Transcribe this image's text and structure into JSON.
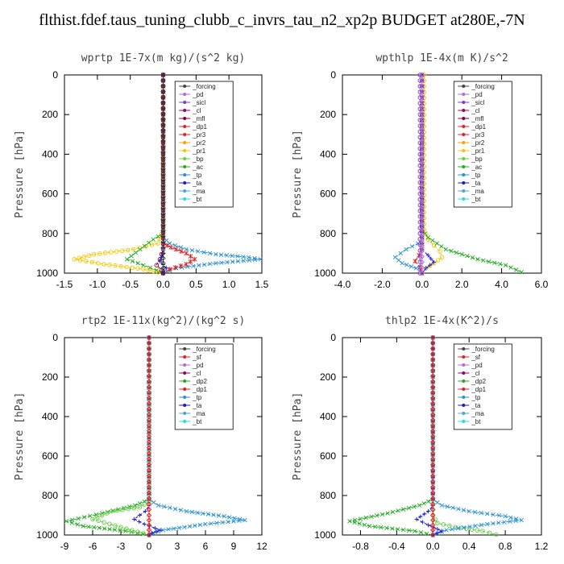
{
  "figure_title": "flthist.fdef.taus_tuning_clubb_c_invrs_tau_n2_xp2p  BUDGET at280E,-7N",
  "chart_data": [
    {
      "type": "line",
      "title": "wprtp  1E-7x(m kg)/(s^2 kg)",
      "ylabel": "Pressure [hPa]",
      "xlim": [
        -1.5,
        1.5
      ],
      "ylim": [
        1000,
        0
      ],
      "xticks": [
        "-1.5",
        "-1.0",
        "-0.5",
        "0.0",
        "0.5",
        "1.0",
        "1.5"
      ],
      "yticks": [
        "0",
        "200",
        "400",
        "600",
        "800",
        "1000"
      ],
      "legend": [
        "_forcing",
        "_pd",
        "_sicl",
        "_cl",
        "_mfl",
        "_dp1",
        "_pr3",
        "_pr2",
        "_pr1",
        "_bp",
        "_ac",
        "_tp",
        "_ta",
        "_ma",
        "_bt"
      ],
      "series": [
        {
          "name": "_pr1",
          "color": "#f5c400",
          "marker": "circle",
          "x": [
            0,
            0,
            -0.08,
            -0.45,
            -1.05,
            -1.35,
            -0.9,
            -0.3,
            0
          ],
          "y": [
            0,
            780,
            850,
            880,
            905,
            930,
            955,
            980,
            1000
          ]
        },
        {
          "name": "_ac",
          "color": "#22aa22",
          "marker": "x",
          "x": [
            0,
            0,
            -0.15,
            -0.35,
            -0.55,
            -0.3,
            -0.1,
            0
          ],
          "y": [
            0,
            800,
            830,
            880,
            930,
            960,
            985,
            1000
          ]
        },
        {
          "name": "_tp",
          "color": "#2a8fd4",
          "marker": "x",
          "x": [
            0,
            0,
            0.1,
            0.35,
            0.8,
            1.3,
            1.48,
            0.8,
            0.2,
            0
          ],
          "y": [
            0,
            820,
            850,
            880,
            905,
            920,
            930,
            950,
            975,
            1000
          ]
        },
        {
          "name": "_pr3",
          "color": "#e02020",
          "marker": "star",
          "x": [
            0,
            0,
            0.12,
            0.35,
            0.48,
            0.35,
            0.1,
            0
          ],
          "y": [
            0,
            850,
            870,
            900,
            930,
            955,
            980,
            1000
          ]
        },
        {
          "name": "_mfl",
          "color": "#800040",
          "marker": "circle",
          "x": [
            0,
            0,
            -0.05,
            -0.1,
            -0.02,
            0
          ],
          "y": [
            0,
            880,
            930,
            960,
            985,
            1000
          ]
        },
        {
          "name": "_ta",
          "color": "#1a1acc",
          "marker": "plus",
          "x": [
            0,
            0,
            -0.05,
            0.05,
            0
          ],
          "y": [
            0,
            900,
            940,
            975,
            1000
          ]
        },
        {
          "name": "_forcing",
          "color": "#333333",
          "marker": "diamond",
          "x": [
            0,
            0,
            0,
            0
          ],
          "y": [
            0,
            500,
            900,
            1000
          ]
        }
      ]
    },
    {
      "type": "line",
      "title": "wpthlp  1E-4x(m K)/s^2",
      "ylabel": "Pressure [hPa]",
      "xlim": [
        -4.0,
        6.0
      ],
      "ylim": [
        1000,
        0
      ],
      "xticks": [
        "-4.0",
        "-2.0",
        "0.0",
        "2.0",
        "4.0",
        "6.0"
      ],
      "yticks": [
        "0",
        "200",
        "400",
        "600",
        "800",
        "1000"
      ],
      "legend": [
        "_forcing",
        "_pd",
        "_sicl",
        "_cl",
        "_mfl",
        "_dp1",
        "_pr3",
        "_pr2",
        "_pr1",
        "_bp",
        "_ac",
        "_tp",
        "_ta",
        "_ma",
        "_bt"
      ],
      "series": [
        {
          "name": "_pr1",
          "color": "#f5c400",
          "marker": "circle",
          "x": [
            0.1,
            0.1,
            0.3,
            0.6,
            0.9,
            1.0,
            0.6,
            0.2,
            0
          ],
          "y": [
            0,
            780,
            830,
            860,
            890,
            920,
            950,
            975,
            1000
          ]
        },
        {
          "name": "_ac",
          "color": "#22aa22",
          "marker": "x",
          "x": [
            0,
            0,
            0.3,
            1.2,
            2.8,
            4.2,
            5.0
          ],
          "y": [
            0,
            780,
            820,
            880,
            930,
            960,
            995
          ]
        },
        {
          "name": "_tp",
          "color": "#2a8fd4",
          "marker": "x",
          "x": [
            0,
            0,
            -0.2,
            -0.8,
            -1.35,
            -1.0,
            -0.3,
            0
          ],
          "y": [
            0,
            820,
            850,
            880,
            920,
            950,
            975,
            1000
          ]
        },
        {
          "name": "_pr3",
          "color": "#e02020",
          "marker": "star",
          "x": [
            0,
            0,
            -0.15,
            -0.35,
            -0.1,
            0
          ],
          "y": [
            0,
            880,
            910,
            940,
            970,
            1000
          ]
        },
        {
          "name": "_ta",
          "color": "#1a1acc",
          "marker": "plus",
          "x": [
            0,
            0,
            0.3,
            0.6,
            0.2,
            0
          ],
          "y": [
            0,
            880,
            910,
            945,
            975,
            1000
          ]
        },
        {
          "name": "_sicl",
          "color": "#7a3cc8",
          "marker": "circle",
          "x": [
            -0.1,
            -0.1,
            -0.1
          ],
          "y": [
            0,
            600,
            1000
          ]
        },
        {
          "name": "_forcing",
          "color": "#b36bd6",
          "marker": "diamond",
          "x": [
            0,
            0,
            0
          ],
          "y": [
            0,
            500,
            1000
          ]
        }
      ]
    },
    {
      "type": "line",
      "title": "rtp2  1E-11x(kg^2)/(kg^2 s)",
      "ylabel": "Pressure [hPa]",
      "xlim": [
        -9,
        12
      ],
      "ylim": [
        1000,
        0
      ],
      "xticks": [
        "-9",
        "-6",
        "-3",
        "0",
        "3",
        "6",
        "9",
        "12"
      ],
      "yticks": [
        "0",
        "200",
        "400",
        "600",
        "800",
        "1000"
      ],
      "legend": [
        "_forcing",
        "_sf",
        "_pd",
        "_cl",
        "_dp2",
        "_dp1",
        "_tp",
        "_ta",
        "_ma",
        "_bt"
      ],
      "series": [
        {
          "name": "_dp2",
          "color": "#22aa22",
          "marker": "x",
          "x": [
            0,
            0,
            -1.5,
            -5.0,
            -8.8,
            -7.0,
            -2.5,
            0
          ],
          "y": [
            0,
            820,
            850,
            890,
            930,
            955,
            980,
            1000
          ]
        },
        {
          "name": "_dp1",
          "color": "#66cc44",
          "marker": "circle",
          "x": [
            0,
            0,
            -1.0,
            -4.0,
            -6.0,
            -3.0,
            0
          ],
          "y": [
            0,
            830,
            860,
            880,
            920,
            960,
            1000
          ]
        },
        {
          "name": "_tp",
          "color": "#2a8fd4",
          "marker": "x",
          "x": [
            0,
            0,
            1.0,
            4.0,
            8.0,
            10.2,
            6.0,
            1.5,
            0
          ],
          "y": [
            0,
            820,
            850,
            880,
            905,
            925,
            945,
            975,
            1000
          ]
        },
        {
          "name": "_ta",
          "color": "#1a1acc",
          "marker": "plus",
          "x": [
            0,
            0,
            -0.4,
            -1.6,
            -0.5,
            1.2,
            0.3,
            0
          ],
          "y": [
            0,
            850,
            880,
            920,
            945,
            975,
            990,
            1000
          ]
        },
        {
          "name": "_forcing",
          "color": "#e02020",
          "marker": "diamond",
          "x": [
            0,
            0,
            0,
            0
          ],
          "y": [
            0,
            500,
            900,
            1000
          ]
        }
      ]
    },
    {
      "type": "line",
      "title": "thlp2  1E-4x(K^2)/s",
      "ylabel": "Pressure [hPa]",
      "xlim": [
        -1.0,
        1.2
      ],
      "ylim": [
        1000,
        0
      ],
      "xticks": [
        "-0.8",
        "-0.4",
        "0.0",
        "0.4",
        "0.8",
        "1.2"
      ],
      "yticks": [
        "0",
        "200",
        "400",
        "600",
        "800",
        "1000"
      ],
      "legend": [
        "_forcing",
        "_sf",
        "_pd",
        "_cl",
        "_dp2",
        "_dp1",
        "_tp",
        "_ta",
        "_ma",
        "_bt"
      ],
      "series": [
        {
          "name": "_dp2",
          "color": "#22aa22",
          "marker": "x",
          "x": [
            0,
            0,
            -0.15,
            -0.5,
            -0.92,
            -0.7,
            -0.2,
            0
          ],
          "y": [
            0,
            820,
            850,
            890,
            930,
            955,
            980,
            1000
          ]
        },
        {
          "name": "_dp1",
          "color": "#66cc44",
          "marker": "circle",
          "x": [
            0,
            0,
            0.05,
            0.25,
            0.55,
            0.7
          ],
          "y": [
            0,
            900,
            940,
            960,
            980,
            998
          ]
        },
        {
          "name": "_tp",
          "color": "#2a8fd4",
          "marker": "x",
          "x": [
            0,
            0,
            0.1,
            0.4,
            0.8,
            0.98,
            0.6,
            0.15,
            0
          ],
          "y": [
            0,
            820,
            850,
            880,
            905,
            925,
            945,
            975,
            1000
          ]
        },
        {
          "name": "_ta",
          "color": "#1a1acc",
          "marker": "plus",
          "x": [
            0,
            0,
            -0.05,
            -0.18,
            -0.05,
            0.1,
            0
          ],
          "y": [
            0,
            850,
            880,
            920,
            950,
            980,
            1000
          ]
        },
        {
          "name": "_forcing",
          "color": "#e02020",
          "marker": "diamond",
          "x": [
            0,
            0,
            0,
            0
          ],
          "y": [
            0,
            500,
            900,
            1000
          ]
        }
      ]
    }
  ]
}
